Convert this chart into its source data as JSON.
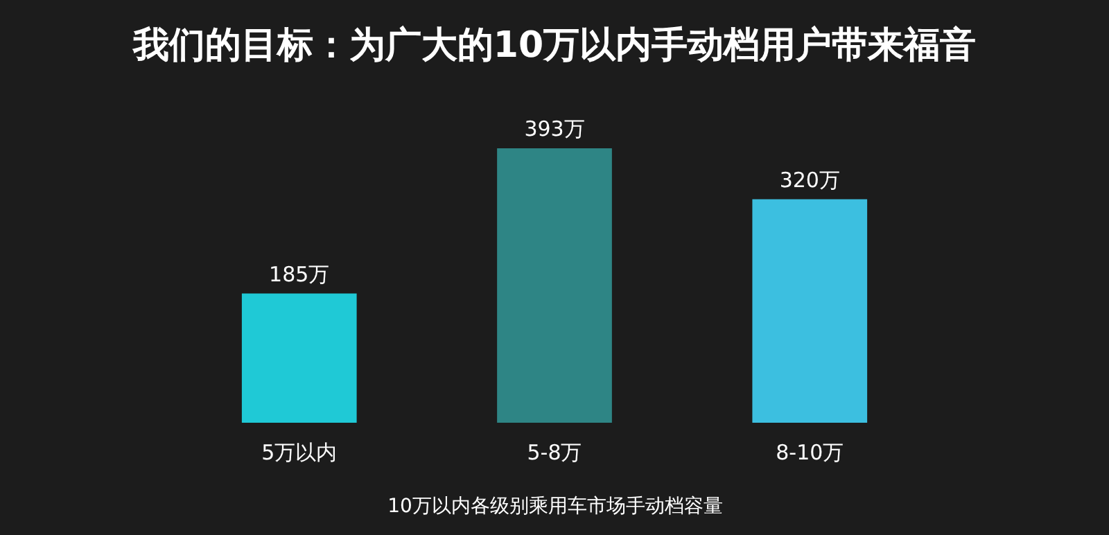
{
  "chart_data": {
    "type": "bar",
    "title": "我们的目标：为广大的10万以内手动档用户带来福音",
    "categories": [
      "5万以内",
      "5-8万",
      "8-10万"
    ],
    "values": [
      185,
      393,
      320
    ],
    "value_labels": [
      "185万",
      "393万",
      "320万"
    ],
    "colors": [
      "#1fc9d6",
      "#2e8585",
      "#3cbfe0"
    ],
    "xlabel": "10万以内各级别乘用车市场手动档容量"
  }
}
